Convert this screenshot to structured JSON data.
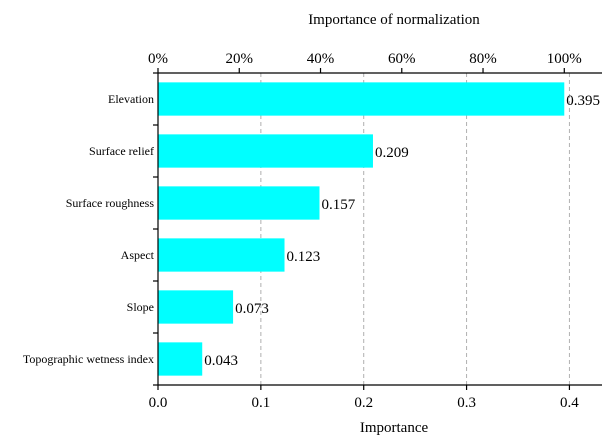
{
  "chart_data": {
    "type": "bar",
    "orientation": "horizontal",
    "categories": [
      "Elevation",
      "Surface relief",
      "Surface roughness",
      "Aspect",
      "Slope",
      "Topographic wetness index"
    ],
    "values": [
      0.395,
      0.209,
      0.157,
      0.123,
      0.073,
      0.043
    ],
    "value_labels": [
      "0.395",
      "0.209",
      "0.157",
      "0.123",
      "0.073",
      "0.043"
    ],
    "xlabel": "Importance",
    "xlim": [
      0,
      0.42
    ],
    "x_ticks": [
      0.0,
      0.1,
      0.2,
      0.3,
      0.4
    ],
    "x_tick_labels": [
      "0.0",
      "0.1",
      "0.2",
      "0.3",
      "0.4"
    ],
    "top_axis": {
      "label": "Importance of normalization",
      "ticks_fraction_of_max": [
        0,
        0.2,
        0.4,
        0.6,
        0.8,
        1.0
      ],
      "tick_labels": [
        "0%",
        "20%",
        "40%",
        "60%",
        "80%",
        "100%"
      ],
      "max_value": 0.395
    },
    "grid": "vertical dashed",
    "bar_color": "#00FFFF"
  }
}
